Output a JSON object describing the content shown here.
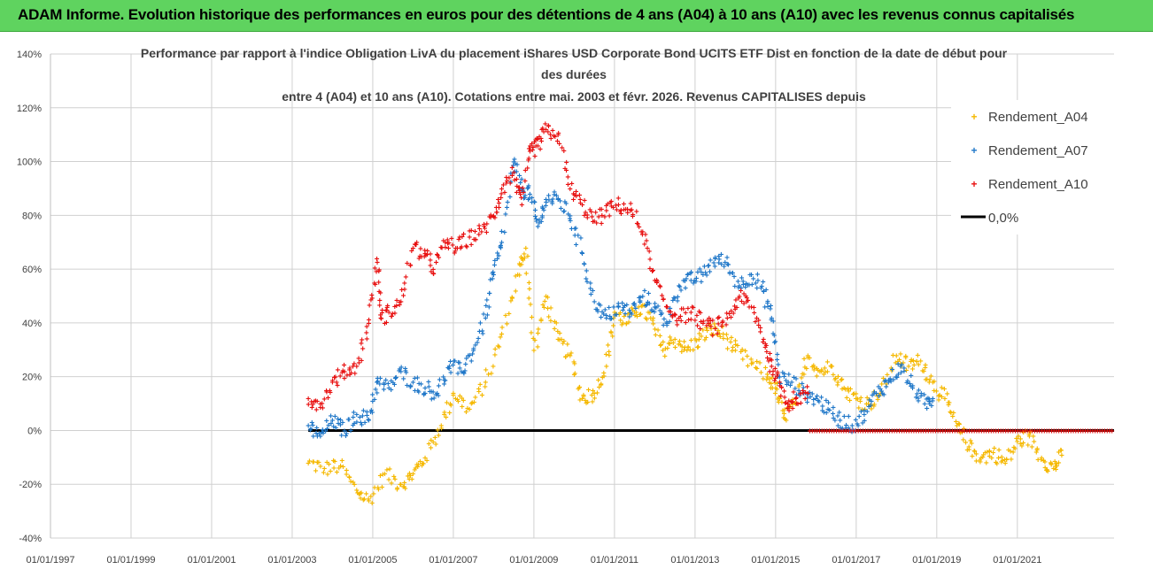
{
  "banner": {
    "title": "ADAM Informe. Evolution historique des performances en euros pour des détentions de 4 ans (A04) à 10 ans (A10) avec les revenus connus capitalisés"
  },
  "colors": {
    "banner_bg": "#5fd35f",
    "a04": "#f5b800",
    "a07": "#1f77c8",
    "a10": "#e81010",
    "zero": "#000000",
    "grid": "#d0d0d0"
  },
  "chart_data": {
    "type": "scatter",
    "title_lines": [
      "Performance par rapport à l'indice Obligation LivA  du placement iShares USD Corporate Bond UCITS ETF Dist en fonction de la date de début pour",
      "des durées",
      "entre 4 (A04) et 10 ans (A10). Cotations entre mai. 2003 et févr. 2026. Revenus CAPITALISES depuis"
    ],
    "x_ticks": [
      "01/01/1997",
      "01/01/1999",
      "01/01/2001",
      "01/01/2003",
      "01/01/2005",
      "01/01/2007",
      "01/01/2009",
      "01/01/2011",
      "01/01/2013",
      "01/01/2015",
      "01/01/2017",
      "01/01/2019",
      "01/01/2021"
    ],
    "xlim": [
      1997.0,
      2023.4
    ],
    "ylim": [
      -40,
      140
    ],
    "y_ticks": [
      -40,
      -20,
      0,
      20,
      40,
      60,
      80,
      100,
      120,
      140
    ],
    "y_unit": "%",
    "legend": [
      "Rendement_A04",
      "Rendement_A07",
      "Rendement_A10",
      "0,0%"
    ],
    "series": [
      {
        "name": "Rendement_A04",
        "color": "#f5b800",
        "x": [
          2003.4,
          2003.8,
          2004.2,
          2004.6,
          2004.9,
          2005.3,
          2005.7,
          2006.0,
          2006.3,
          2006.7,
          2007.0,
          2007.4,
          2007.8,
          2008.2,
          2008.6,
          2008.8,
          2009.0,
          2009.3,
          2009.6,
          2009.9,
          2010.2,
          2010.5,
          2010.8,
          2011.0,
          2011.3,
          2011.6,
          2011.9,
          2012.2,
          2012.5,
          2012.8,
          2013.1,
          2013.4,
          2013.7,
          2014.0,
          2014.4,
          2014.8,
          2015.0,
          2015.2,
          2015.5,
          2015.8,
          2016.1,
          2016.4,
          2016.7,
          2017.0,
          2017.3,
          2017.6,
          2018.0,
          2018.3,
          2018.6,
          2018.9,
          2019.2,
          2019.5,
          2019.8,
          2020.1,
          2020.4,
          2020.7,
          2021.0,
          2021.3,
          2021.6,
          2021.9,
          2022.1
        ],
        "values": [
          -12,
          -14,
          -13,
          -22,
          -26,
          -16,
          -20,
          -16,
          -10,
          2,
          14,
          8,
          18,
          36,
          58,
          68,
          30,
          50,
          34,
          28,
          12,
          14,
          24,
          44,
          40,
          46,
          42,
          30,
          34,
          30,
          34,
          38,
          36,
          30,
          25,
          20,
          16,
          5,
          10,
          28,
          22,
          24,
          16,
          12,
          10,
          14,
          28,
          24,
          26,
          18,
          12,
          2,
          -6,
          -10,
          -8,
          -12,
          -4,
          -2,
          -10,
          -14,
          -9
        ]
      },
      {
        "name": "Rendement_A07",
        "color": "#1f77c8",
        "x": [
          2003.4,
          2003.7,
          2004.0,
          2004.3,
          2004.6,
          2004.9,
          2005.1,
          2005.4,
          2005.7,
          2006.0,
          2006.3,
          2006.6,
          2006.9,
          2007.2,
          2007.5,
          2007.8,
          2008.0,
          2008.2,
          2008.5,
          2008.7,
          2008.9,
          2009.1,
          2009.3,
          2009.6,
          2009.9,
          2010.2,
          2010.5,
          2010.8,
          2011.1,
          2011.4,
          2011.7,
          2012.0,
          2012.3,
          2012.6,
          2012.9,
          2013.2,
          2013.5,
          2013.8,
          2014.1,
          2014.4,
          2014.7,
          2014.9,
          2015.1,
          2015.4,
          2015.7,
          2016.0,
          2016.3,
          2016.6,
          2016.9,
          2017.2,
          2017.5,
          2017.8,
          2018.1,
          2018.4,
          2018.7,
          2018.9
        ],
        "values": [
          2,
          -2,
          4,
          0,
          6,
          4,
          18,
          16,
          22,
          18,
          16,
          14,
          24,
          22,
          30,
          42,
          58,
          70,
          100,
          90,
          88,
          76,
          86,
          86,
          80,
          66,
          48,
          42,
          46,
          44,
          50,
          46,
          40,
          54,
          56,
          58,
          64,
          62,
          54,
          58,
          52,
          42,
          20,
          18,
          14,
          12,
          8,
          4,
          2,
          6,
          14,
          18,
          24,
          16,
          10,
          12
        ]
      },
      {
        "name": "Rendement_A10",
        "color": "#e81010",
        "x": [
          2003.4,
          2003.7,
          2004.0,
          2004.3,
          2004.6,
          2004.9,
          2005.1,
          2005.2,
          2005.4,
          2005.7,
          2006.0,
          2006.3,
          2006.5,
          2006.8,
          2007.1,
          2007.4,
          2007.7,
          2008.0,
          2008.2,
          2008.5,
          2008.7,
          2008.9,
          2009.1,
          2009.3,
          2009.6,
          2009.9,
          2010.2,
          2010.5,
          2010.8,
          2011.1,
          2011.4,
          2011.7,
          2012.0,
          2012.3,
          2012.6,
          2012.9,
          2013.2,
          2013.5,
          2013.8,
          2014.1,
          2014.4,
          2014.7,
          2014.9,
          2015.1,
          2015.3,
          2015.5,
          2015.8
        ],
        "values": [
          12,
          10,
          18,
          22,
          24,
          40,
          64,
          42,
          44,
          48,
          68,
          66,
          60,
          70,
          68,
          72,
          74,
          80,
          90,
          96,
          84,
          104,
          106,
          112,
          110,
          90,
          84,
          78,
          82,
          84,
          82,
          74,
          56,
          46,
          42,
          44,
          40,
          38,
          42,
          50,
          46,
          34,
          24,
          18,
          10,
          12,
          14
        ]
      }
    ]
  }
}
